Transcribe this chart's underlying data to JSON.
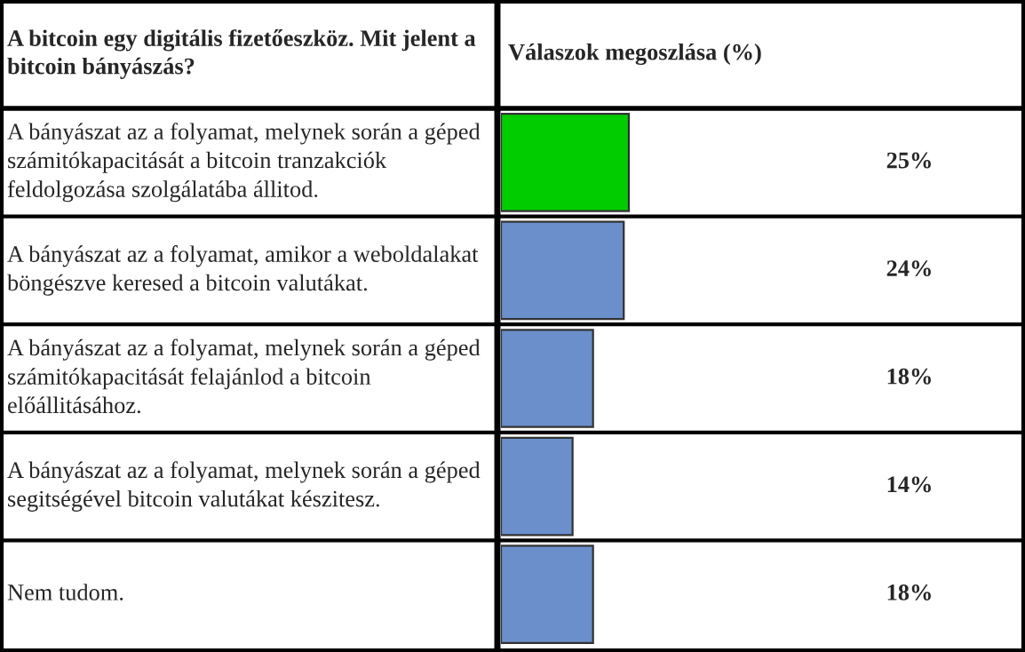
{
  "chart_data": {
    "type": "bar",
    "orientation": "horizontal",
    "title": "A bitcoin egy digitális fizetőeszköz. Mit jelent a bitcoin bányászás?",
    "xlabel": "Válaszok megoszlása (%)",
    "categories": [
      "A bányászat az a folyamat, melynek során a géped számitókapacitását a bitcoin tranzakciók feldolgozása szolgálatába állitod.",
      "A bányászat az a folyamat, amikor a weboldalakat böngészve keresed a bitcoin valutákat.",
      "A bányászat az a folyamat, melynek során a géped számitókapacitását felajánlod a bitcoin előállitásához.",
      "A bányászat az a folyamat, melynek során a géped segitségével bitcoin valutákat készitesz.",
      "Nem tudom."
    ],
    "values": [
      25,
      24,
      18,
      14,
      18
    ],
    "colors": [
      "#00cc00",
      "#6a8fcb",
      "#6a8fcb",
      "#6a8fcb",
      "#6a8fcb"
    ],
    "value_labels": [
      "25%",
      "24%",
      "18%",
      "14%",
      "18%"
    ]
  }
}
